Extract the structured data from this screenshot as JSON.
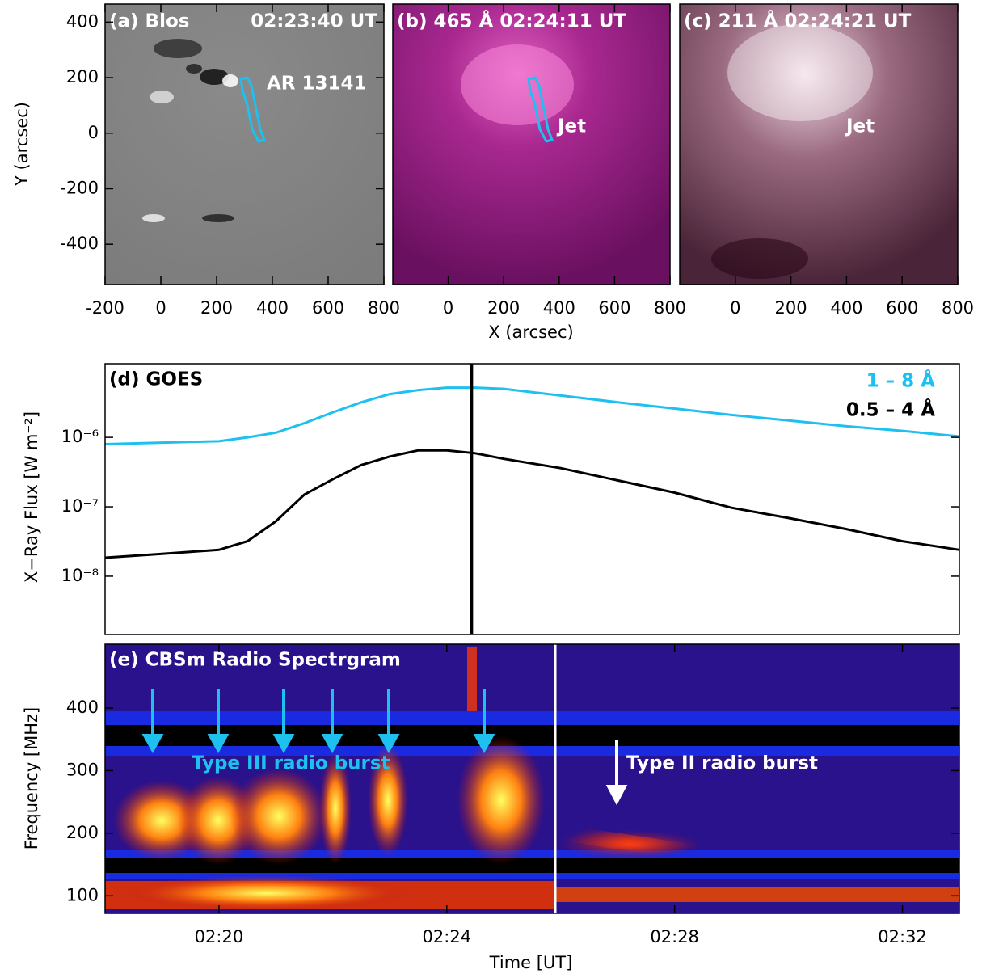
{
  "chart_data": [
    {
      "type": "image",
      "title": "(a) Blos",
      "time": "02:23:40 UT",
      "annotations": [
        "AR 13141"
      ],
      "palette": "gray",
      "xlim": [
        -200,
        800
      ],
      "ylim": [
        -545,
        465
      ],
      "xticks": [
        -200,
        0,
        200,
        400,
        600,
        800
      ],
      "yticks": [
        400,
        200,
        0,
        -200,
        -400
      ],
      "ylabel": "Y (arcsec)"
    },
    {
      "type": "image",
      "title": "(b) 465 Å 02:24:11 UT",
      "annotations": [
        "Jet"
      ],
      "palette": "magenta",
      "xlim": [
        -200,
        800
      ],
      "ylim": [
        -545,
        465
      ],
      "xticks": [
        0,
        200,
        400,
        600,
        800
      ],
      "xlabel": "X (arcsec)"
    },
    {
      "type": "image",
      "title": "(c) 211 Å 02:24:21 UT",
      "annotations": [
        "Jet"
      ],
      "palette": "mauve",
      "xlim": [
        -200,
        800
      ],
      "ylim": [
        -545,
        465
      ],
      "xticks": [
        0,
        200,
        400,
        600,
        800
      ]
    },
    {
      "type": "line",
      "title": "(d) GOES",
      "ylabel": "X−Ray Flux [W m⁻²]",
      "log_scale": true,
      "legend": "upper right",
      "xlim": [
        "02:18",
        "02:33"
      ],
      "ylim": [
        1.45e-09,
        1.15e-05
      ],
      "yticks": [
        {
          "value": 1e-08,
          "label": "10⁻⁸"
        },
        {
          "value": 1e-07,
          "label": "10⁻⁷"
        },
        {
          "value": 1e-06,
          "label": "10⁻⁶"
        }
      ],
      "marker_time": "02:24:26",
      "x": [
        "02:18:00",
        "02:19:00",
        "02:20:00",
        "02:20:30",
        "02:21:00",
        "02:21:30",
        "02:22:00",
        "02:22:30",
        "02:23:00",
        "02:23:30",
        "02:24:00",
        "02:24:30",
        "02:25:00",
        "02:26:00",
        "02:27:00",
        "02:28:00",
        "02:29:00",
        "02:30:00",
        "02:31:00",
        "02:32:00",
        "02:33:00"
      ],
      "series": [
        {
          "name": "1 – 8 Å",
          "color": "#1ec0f0",
          "values": [
            8e-07,
            8.4e-07,
            8.8e-07,
            1e-06,
            1.17e-06,
            1.6e-06,
            2.3e-06,
            3.2e-06,
            4.2e-06,
            4.8e-06,
            5.2e-06,
            5.2e-06,
            5e-06,
            4e-06,
            3.2e-06,
            2.6e-06,
            2.1e-06,
            1.75e-06,
            1.45e-06,
            1.24e-06,
            1.03e-06
          ]
        },
        {
          "name": "0.5 – 4 Å",
          "color": "#000000",
          "values": [
            1.85e-08,
            2.1e-08,
            2.4e-08,
            3.2e-08,
            6.2e-08,
            1.5e-07,
            2.5e-07,
            4e-07,
            5.3e-07,
            6.5e-07,
            6.5e-07,
            5.9e-07,
            4.9e-07,
            3.6e-07,
            2.4e-07,
            1.6e-07,
            9.7e-08,
            6.9e-08,
            4.8e-08,
            3.2e-08,
            2.4e-08
          ]
        }
      ]
    },
    {
      "type": "spectrogram",
      "title": "(e) CBSm Radio Spectrgram",
      "annotations": [
        "Type III radio burst",
        "Type II radio burst"
      ],
      "xlim": [
        "02:18",
        "02:33"
      ],
      "xticks": [
        "02:20",
        "02:24",
        "02:28",
        "02:32"
      ],
      "ylim": [
        72,
        502
      ],
      "yticks": [
        100,
        200,
        300,
        400
      ],
      "ylabel": "Frequency [MHz]",
      "xlabel": "Time [UT]"
    }
  ]
}
